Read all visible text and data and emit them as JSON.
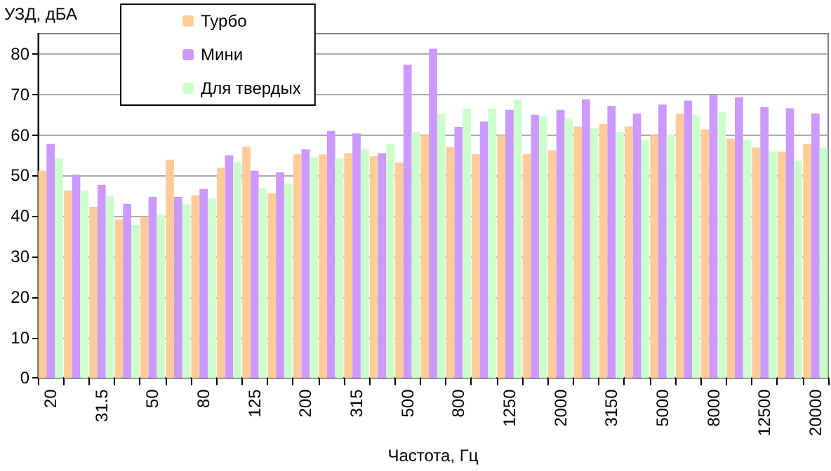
{
  "chart_data": {
    "type": "bar",
    "xlabel": "Частота, Гц",
    "ylabel": "УЗД, дБА",
    "categories": [
      "20",
      null,
      "31.5",
      null,
      "50",
      null,
      "80",
      null,
      "125",
      null,
      "200",
      null,
      "315",
      null,
      "500",
      null,
      "800",
      null,
      "1250",
      null,
      "2000",
      null,
      "3150",
      null,
      "5000",
      null,
      "8000",
      null,
      "12500",
      null,
      "20000"
    ],
    "series": [
      {
        "name": "Турбо",
        "color": "#ffcc99",
        "values": [
          51.2,
          46.3,
          42.3,
          39.1,
          39.8,
          53.9,
          45.1,
          51.9,
          57.1,
          45.6,
          55.2,
          55.2,
          55.5,
          54.8,
          53.2,
          59.9,
          57.0,
          55.3,
          59.9,
          55.3,
          56.2,
          62.1,
          62.7,
          62.1,
          59.9,
          65.3,
          61.4,
          59.1,
          56.9,
          55.9,
          57.8
        ]
      },
      {
        "name": "Мини",
        "color": "#cc99ff",
        "values": [
          57.8,
          50.2,
          47.7,
          43.0,
          44.7,
          44.7,
          46.7,
          55.0,
          51.2,
          50.8,
          56.4,
          61.0,
          60.4,
          55.5,
          77.3,
          81.3,
          62.0,
          63.3,
          66.2,
          65.0,
          66.2,
          68.8,
          67.2,
          65.3,
          67.5,
          68.5,
          69.8,
          69.3,
          66.9,
          66.6,
          65.3
        ]
      },
      {
        "name": "Для твердых",
        "color": "#ccffcc",
        "values": [
          54.2,
          46.3,
          45.1,
          37.8,
          40.4,
          43.0,
          44.3,
          53.2,
          46.9,
          48.0,
          54.5,
          54.2,
          56.5,
          57.8,
          60.7,
          65.3,
          66.5,
          66.5,
          68.8,
          64.6,
          64.0,
          61.7,
          60.8,
          58.8,
          60.1,
          64.9,
          65.6,
          58.8,
          55.9,
          53.6,
          56.9
        ]
      }
    ],
    "ylim": [
      0,
      85
    ],
    "yticks": [
      0,
      10,
      20,
      30,
      40,
      50,
      60,
      70,
      80
    ],
    "grid": "y",
    "legend": "top left"
  }
}
